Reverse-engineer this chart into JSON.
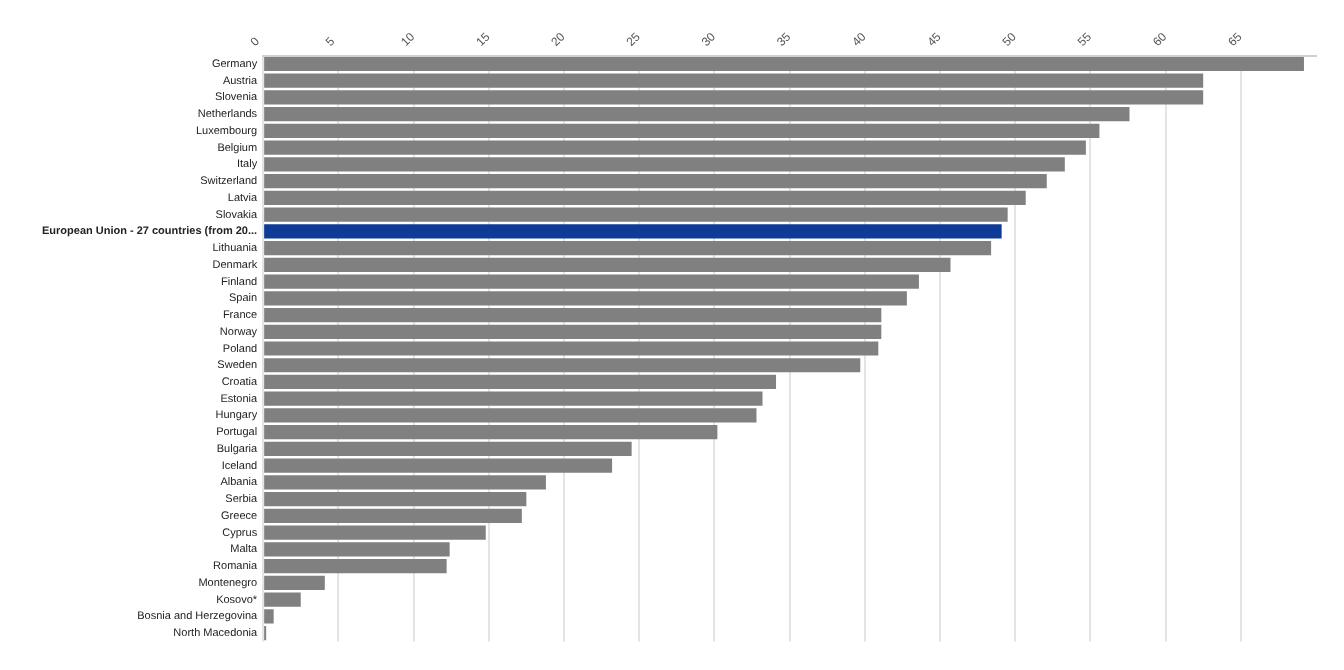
{
  "chart_data": {
    "type": "bar",
    "orientation": "horizontal",
    "categories": [
      "Germany",
      "Austria",
      "Slovenia",
      "Netherlands",
      "Luxembourg",
      "Belgium",
      "Italy",
      "Switzerland",
      "Latvia",
      "Slovakia",
      "European Union - 27 countries (from 20...",
      "Lithuania",
      "Denmark",
      "Finland",
      "Spain",
      "France",
      "Norway",
      "Poland",
      "Sweden",
      "Croatia",
      "Estonia",
      "Hungary",
      "Portugal",
      "Bulgaria",
      "Iceland",
      "Albania",
      "Serbia",
      "Greece",
      "Cyprus",
      "Malta",
      "Romania",
      "Montenegro",
      "Kosovo*",
      "Bosnia and Herzegovina",
      "North Macedonia"
    ],
    "values": [
      69.2,
      62.5,
      62.5,
      57.6,
      55.6,
      54.7,
      53.3,
      52.1,
      50.7,
      49.5,
      49.1,
      48.4,
      45.7,
      43.6,
      42.8,
      41.1,
      41.1,
      40.9,
      39.7,
      34.1,
      33.2,
      32.8,
      30.2,
      24.5,
      23.2,
      18.8,
      17.5,
      17.2,
      14.8,
      12.4,
      12.2,
      4.1,
      2.5,
      0.7,
      0.2
    ],
    "colors": [
      "#808080",
      "#808080",
      "#808080",
      "#808080",
      "#808080",
      "#808080",
      "#808080",
      "#808080",
      "#808080",
      "#808080",
      "#0e3b96",
      "#808080",
      "#808080",
      "#808080",
      "#808080",
      "#808080",
      "#808080",
      "#808080",
      "#808080",
      "#808080",
      "#808080",
      "#808080",
      "#808080",
      "#808080",
      "#808080",
      "#808080",
      "#808080",
      "#808080",
      "#808080",
      "#808080",
      "#808080",
      "#808080",
      "#808080",
      "#808080",
      "#808080"
    ],
    "xlim": [
      0,
      70
    ],
    "xticks": [
      0,
      5,
      10,
      15,
      20,
      25,
      30,
      35,
      40,
      45,
      50,
      55,
      60,
      65
    ],
    "grid": "x",
    "legend": false
  }
}
